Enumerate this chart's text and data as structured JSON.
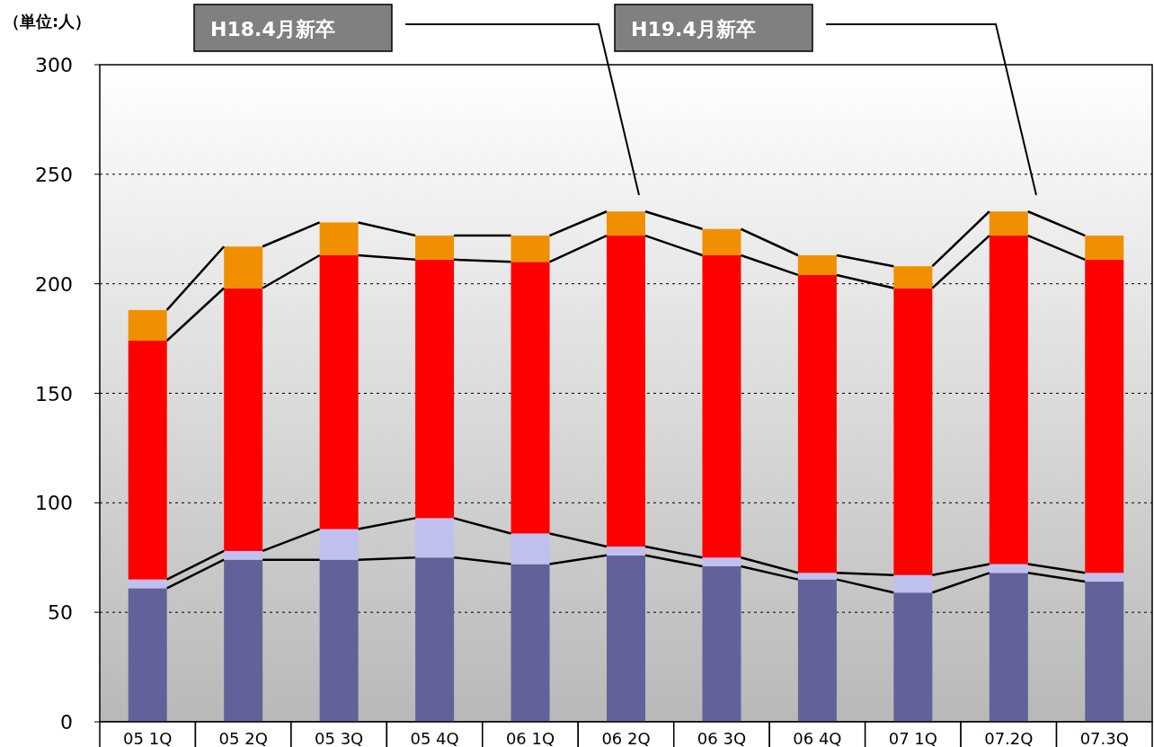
{
  "chart_data": {
    "type": "bar",
    "stacked": true,
    "ylabel": "（単位:人）",
    "categories": [
      "05 1Q",
      "05 2Q",
      "05 3Q",
      "05 4Q",
      "06 1Q",
      "06 2Q",
      "06 3Q",
      "06 4Q",
      "07 1Q",
      "07.2Q",
      "07.3Q"
    ],
    "series": [
      {
        "color": "#62629a",
        "values": [
          61,
          74,
          74,
          75,
          72,
          76,
          71,
          65,
          59,
          68,
          64
        ]
      },
      {
        "color": "#c0c0f0",
        "values": [
          4,
          4,
          14,
          18,
          14,
          4,
          4,
          3,
          8,
          4,
          4
        ]
      },
      {
        "color": "#ff0000",
        "values": [
          109,
          120,
          125,
          118,
          124,
          142,
          138,
          136,
          131,
          150,
          143
        ]
      },
      {
        "color": "#f09000",
        "values": [
          14,
          19,
          15,
          11,
          12,
          11,
          12,
          9,
          10,
          11,
          11
        ]
      }
    ],
    "ylim": [
      0,
      300
    ],
    "yticks": [
      0,
      50,
      100,
      150,
      200,
      250,
      300
    ],
    "grid": "y",
    "annotations": [
      "H18.4月新卒",
      "H19.4月新卒"
    ]
  }
}
